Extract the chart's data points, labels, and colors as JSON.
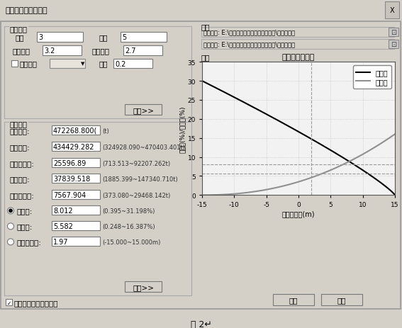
{
  "title_bar": "矿岩分界处边界控制",
  "section_params": "参数设置",
  "section_indicators": "指标设置",
  "section_input": "输入",
  "section_output": "输出",
  "btn_calc": "计算>>",
  "btn_view": "查看>>",
  "btn_ok": "确定",
  "btn_cancel": "取消",
  "indicator_labels": [
    "动用矿量:",
    "采出矿量:",
    "混入废石量:",
    "损失矿量:",
    "损失金属量:",
    "损失率:",
    "贫化率:",
    "后冲线位置:"
  ],
  "indicator_values": [
    "472268.800(",
    "434429.282",
    "25596.89",
    "37839.518",
    "7567.904",
    "8.012",
    "5.582",
    "1.97"
  ],
  "indicator_units": [
    "(t)",
    "(324928.090~470403.401t)",
    "(713.513~92207.262t)",
    "(1885.399~147340.710t)",
    "(373.080~29468.142t)",
    "(0.395~31.198%)",
    "(0.248~16.387%)",
    "(-15.000~15.000m)"
  ],
  "input_line1": "矿体模型: E:\\【项目】露天矿爆破测试用例\\开采水平矿",
  "input_line2": "块段模型: E:\\【项目】露天矿爆破测试用例\\品位控制块",
  "checkbox_label": "输出矿岩界线处剖面图",
  "chart_title": "损失贫化曲线图",
  "chart_xlabel": "后冲线位置(m)",
  "chart_ylabel": "损失率(%)/贫化率(%)",
  "legend_dilution": "贫化率",
  "legend_loss": "损失率",
  "vline_x": 1.97,
  "hline_y1": 8.012,
  "hline_y2": 5.582,
  "bg_dialog": "#d4d0c8",
  "bg_titlebar": "#b0a8a0",
  "color_line_black": "#000000",
  "color_line_gray": "#909090",
  "grid_color": "#bbbbbb",
  "fig_caption": "图 2"
}
